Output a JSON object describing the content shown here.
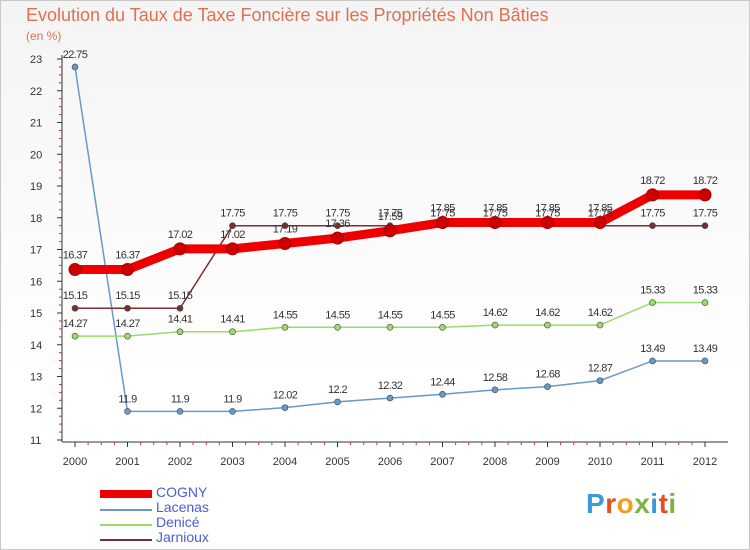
{
  "title": "Evolution du Taux de Taxe Foncière sur les Propriétés Non Bâties",
  "unit_label": "(en %)",
  "logo_text": "Proxiti",
  "logo_colors": [
    "#3a9ad9",
    "#e05020",
    "#f0a020",
    "#7cb342",
    "#3a9ad9",
    "#e05020",
    "#7cb342"
  ],
  "chart_data": {
    "type": "line",
    "title": "Evolution du Taux de Taxe Foncière sur les Propriétés Non Bâties",
    "ylabel": "(en %)",
    "xlabel": "",
    "x": [
      "2000",
      "2001",
      "2002",
      "2003",
      "2004",
      "2005",
      "2006",
      "2007",
      "2008",
      "2009",
      "2010",
      "2011",
      "2012"
    ],
    "ylim": [
      11,
      23
    ],
    "yticks": [
      "11",
      "12",
      "13",
      "14",
      "15",
      "16",
      "17",
      "18",
      "19",
      "20",
      "21",
      "22",
      "23"
    ],
    "series": [
      {
        "name": "COGNY",
        "color": "#ee0000",
        "values": [
          16.37,
          16.37,
          17.02,
          17.02,
          17.19,
          17.36,
          17.59,
          17.85,
          17.85,
          17.85,
          17.85,
          18.72,
          18.72
        ],
        "labels": [
          "16.37",
          "16.37",
          "17.02",
          "17.02",
          "17.19",
          "17.36",
          "17.59",
          "17.85",
          "17.85",
          "17.85",
          "17.85",
          "18.72",
          "18.72"
        ]
      },
      {
        "name": "Lacenas",
        "color": "#6699cc",
        "values": [
          22.75,
          11.9,
          11.9,
          11.9,
          12.02,
          12.2,
          12.32,
          12.44,
          12.58,
          12.68,
          12.87,
          13.49,
          13.49
        ],
        "labels": [
          "22.75",
          "11.9",
          "11.9",
          "11.9",
          "12.02",
          "12.2",
          "12.32",
          "12.44",
          "12.58",
          "12.68",
          "12.87",
          "13.49",
          "13.49"
        ]
      },
      {
        "name": "Denicé",
        "color": "#99dd66",
        "values": [
          14.27,
          14.27,
          14.41,
          14.41,
          14.55,
          14.55,
          14.55,
          14.55,
          14.62,
          14.62,
          14.62,
          15.33,
          15.33
        ],
        "labels": [
          "14.27",
          "14.27",
          "14.41",
          "14.41",
          "14.55",
          "14.55",
          "14.55",
          "14.55",
          "14.62",
          "14.62",
          "14.62",
          "15.33",
          "15.33"
        ]
      },
      {
        "name": "Jarnioux",
        "color": "#7a3030",
        "values": [
          15.15,
          15.15,
          15.15,
          17.75,
          17.75,
          17.75,
          17.75,
          17.75,
          17.75,
          17.75,
          17.75,
          17.75,
          17.75
        ],
        "labels": [
          "15.15",
          "15.15",
          "15.15",
          "17.75",
          "17.75",
          "17.75",
          "17.75",
          "17.75",
          "17.75",
          "17.75",
          "17.75",
          "17.75",
          "17.75"
        ]
      }
    ],
    "legend": [
      "COGNY",
      "Lacenas",
      "Denicé",
      "Jarnioux"
    ],
    "legend_position": "bottom-left",
    "grid": false
  }
}
